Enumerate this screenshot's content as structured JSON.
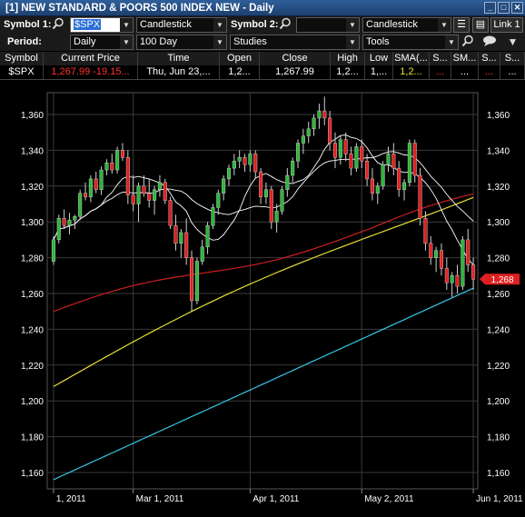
{
  "window": {
    "title": "[1] NEW STANDARD & POORS 500 INDEX NEW - Daily",
    "buttons": [
      "_",
      "□",
      "✕"
    ]
  },
  "toolbar": {
    "symbol1_label": "Symbol 1:",
    "symbol1_value": "$SPX",
    "chart_type1": "Candlestick",
    "symbol2_label": "Symbol 2:",
    "symbol2_value": "",
    "chart_type2": "Candlestick",
    "link_label": "Link 1",
    "period_label": "Period:",
    "period_value": "Daily",
    "range_value": "100 Day",
    "studies_value": "Studies",
    "tools_value": "Tools"
  },
  "quote": {
    "headers": [
      "Symbol",
      "Current Price",
      "Time",
      "Open",
      "Close",
      "High",
      "Low",
      "SMA(...",
      "S...",
      "SM...",
      "S...",
      "S..."
    ],
    "row": {
      "symbol": "$SPX",
      "price": "1,267.99",
      "change": "-19.15...",
      "time": "Thu, Jun 23,...",
      "open": "1,2...",
      "close": "1,267.99",
      "high": "1,2...",
      "low": "1,...",
      "sma1": "1,2...",
      "sma2": "...",
      "sma3": "...",
      "sma4": "...",
      "sma5": "..."
    }
  },
  "chart_data": {
    "type": "candlestick",
    "price_tag": "1,268",
    "y_ticks": [
      "1,360",
      "1,340",
      "1,320",
      "1,300",
      "1,280",
      "1,260",
      "1,240",
      "1,220",
      "1,200",
      "1,180",
      "1,160"
    ],
    "y_tick_values": [
      1360,
      1340,
      1320,
      1300,
      1280,
      1260,
      1240,
      1220,
      1200,
      1180,
      1160
    ],
    "ylim": [
      1155,
      1370
    ],
    "x_ticks": [
      {
        "label": "1, 2011",
        "index": 0
      },
      {
        "label": "Mar 1, 2011",
        "index": 15
      },
      {
        "label": "Apr 1, 2011",
        "index": 37
      },
      {
        "label": "May 2, 2011",
        "index": 58
      },
      {
        "label": "Jun 1, 2011",
        "index": 79
      }
    ],
    "ohlc": [
      [
        1278,
        1292,
        1276,
        1290
      ],
      [
        1290,
        1304,
        1288,
        1302
      ],
      [
        1302,
        1307,
        1296,
        1298
      ],
      [
        1298,
        1305,
        1293,
        1301
      ],
      [
        1301,
        1304,
        1296,
        1303
      ],
      [
        1303,
        1318,
        1301,
        1316
      ],
      [
        1316,
        1322,
        1312,
        1314
      ],
      [
        1314,
        1326,
        1311,
        1324
      ],
      [
        1324,
        1328,
        1316,
        1318
      ],
      [
        1318,
        1331,
        1315,
        1329
      ],
      [
        1329,
        1335,
        1326,
        1333
      ],
      [
        1333,
        1338,
        1327,
        1329
      ],
      [
        1329,
        1342,
        1327,
        1340
      ],
      [
        1340,
        1344,
        1334,
        1336
      ],
      [
        1336,
        1340,
        1310,
        1315
      ],
      [
        1315,
        1326,
        1306,
        1310
      ],
      [
        1310,
        1322,
        1300,
        1320
      ],
      [
        1320,
        1326,
        1314,
        1316
      ],
      [
        1316,
        1324,
        1308,
        1312
      ],
      [
        1312,
        1320,
        1304,
        1318
      ],
      [
        1318,
        1326,
        1314,
        1322
      ],
      [
        1322,
        1324,
        1310,
        1312
      ],
      [
        1312,
        1314,
        1296,
        1298
      ],
      [
        1298,
        1304,
        1284,
        1288
      ],
      [
        1288,
        1296,
        1280,
        1294
      ],
      [
        1294,
        1302,
        1276,
        1280
      ],
      [
        1280,
        1284,
        1250,
        1256
      ],
      [
        1256,
        1280,
        1254,
        1278
      ],
      [
        1278,
        1290,
        1276,
        1286
      ],
      [
        1286,
        1300,
        1282,
        1298
      ],
      [
        1298,
        1310,
        1296,
        1308
      ],
      [
        1308,
        1318,
        1304,
        1316
      ],
      [
        1316,
        1326,
        1312,
        1324
      ],
      [
        1324,
        1332,
        1320,
        1330
      ],
      [
        1330,
        1338,
        1326,
        1334
      ],
      [
        1334,
        1340,
        1330,
        1336
      ],
      [
        1336,
        1338,
        1328,
        1332
      ],
      [
        1332,
        1340,
        1328,
        1338
      ],
      [
        1338,
        1340,
        1324,
        1328
      ],
      [
        1328,
        1330,
        1310,
        1314
      ],
      [
        1314,
        1322,
        1310,
        1318
      ],
      [
        1318,
        1320,
        1296,
        1300
      ],
      [
        1300,
        1310,
        1294,
        1306
      ],
      [
        1306,
        1320,
        1304,
        1318
      ],
      [
        1318,
        1330,
        1314,
        1326
      ],
      [
        1326,
        1336,
        1322,
        1334
      ],
      [
        1334,
        1346,
        1330,
        1344
      ],
      [
        1344,
        1352,
        1338,
        1348
      ],
      [
        1348,
        1356,
        1344,
        1352
      ],
      [
        1352,
        1360,
        1348,
        1358
      ],
      [
        1358,
        1366,
        1352,
        1362
      ],
      [
        1362,
        1370,
        1354,
        1358
      ],
      [
        1358,
        1362,
        1340,
        1344
      ],
      [
        1344,
        1350,
        1330,
        1336
      ],
      [
        1336,
        1348,
        1332,
        1346
      ],
      [
        1346,
        1350,
        1334,
        1338
      ],
      [
        1338,
        1342,
        1326,
        1330
      ],
      [
        1330,
        1344,
        1328,
        1342
      ],
      [
        1342,
        1346,
        1330,
        1334
      ],
      [
        1334,
        1338,
        1320,
        1324
      ],
      [
        1324,
        1330,
        1312,
        1316
      ],
      [
        1316,
        1322,
        1310,
        1320
      ],
      [
        1320,
        1334,
        1318,
        1332
      ],
      [
        1332,
        1342,
        1328,
        1338
      ],
      [
        1338,
        1344,
        1326,
        1330
      ],
      [
        1330,
        1334,
        1314,
        1318
      ],
      [
        1318,
        1324,
        1312,
        1322
      ],
      [
        1322,
        1346,
        1320,
        1344
      ],
      [
        1344,
        1346,
        1322,
        1326
      ],
      [
        1326,
        1330,
        1298,
        1302
      ],
      [
        1302,
        1306,
        1284,
        1288
      ],
      [
        1288,
        1292,
        1276,
        1280
      ],
      [
        1280,
        1286,
        1272,
        1284
      ],
      [
        1284,
        1288,
        1270,
        1274
      ],
      [
        1274,
        1280,
        1262,
        1266
      ],
      [
        1266,
        1272,
        1258,
        1270
      ],
      [
        1270,
        1276,
        1260,
        1264
      ],
      [
        1264,
        1292,
        1262,
        1290
      ],
      [
        1290,
        1296,
        1272,
        1276
      ],
      [
        1276,
        1280,
        1262,
        1268
      ]
    ],
    "series": [
      {
        "name": "SMA 10",
        "color": "#ffffff"
      },
      {
        "name": "SMA 20",
        "color": "#ffffff"
      },
      {
        "name": "SMA 50",
        "color": "#cc1f1f"
      },
      {
        "name": "SMA 100",
        "color": "#e8e032"
      },
      {
        "name": "SMA 200",
        "color": "#35c6e6"
      }
    ],
    "sma200_endpoints": [
      1156,
      1263
    ],
    "sma100_endpoints": [
      1208,
      1318
    ],
    "sma50_endpoints": [
      1250,
      1310
    ],
    "grid": true,
    "colors": {
      "up": "#2fb53a",
      "down": "#e02020",
      "bg": "#000000",
      "grid": "#3a3a3a",
      "tag": "#e02020"
    }
  }
}
